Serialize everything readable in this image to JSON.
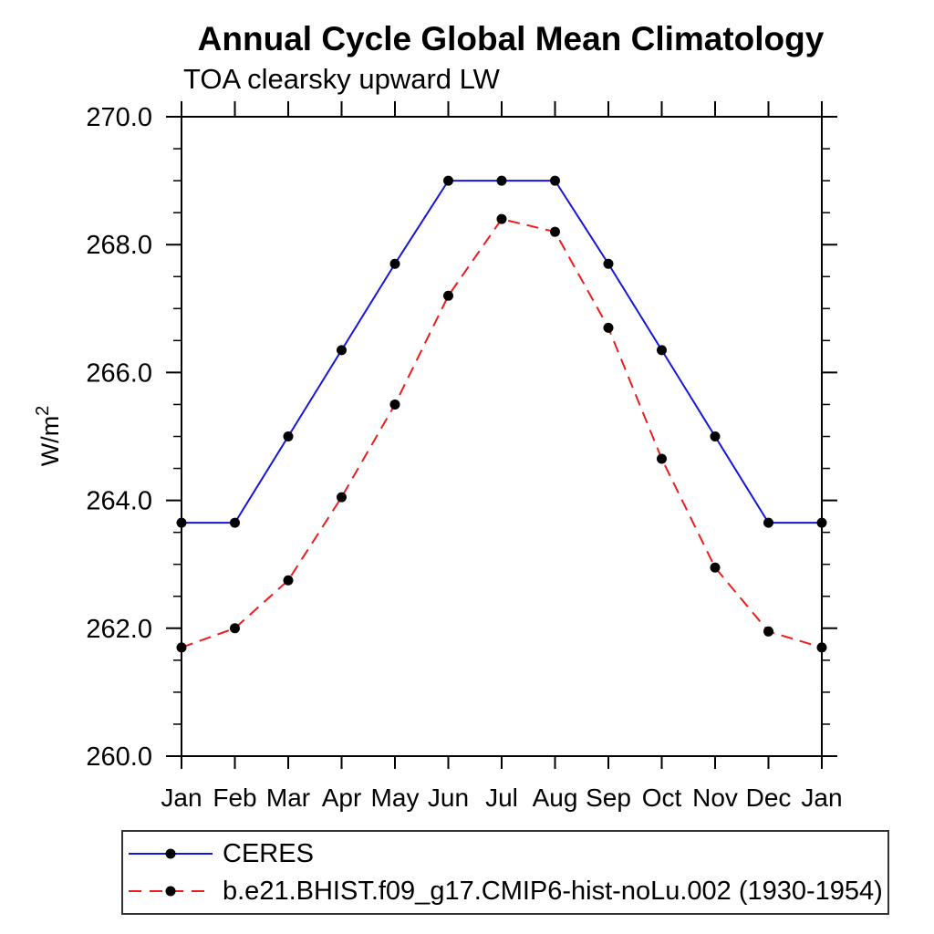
{
  "page": {
    "background": "#ffffff"
  },
  "chart_data": {
    "type": "line",
    "title": "Annual Cycle Global Mean Climatology",
    "subtitle": "TOA clearsky upward LW",
    "ylabel": "W/m²",
    "ylabel_base": "W/m",
    "ylabel_sup": "2",
    "x_categories": [
      "Jan",
      "Feb",
      "Mar",
      "Apr",
      "May",
      "Jun",
      "Jul",
      "Aug",
      "Sep",
      "Oct",
      "Nov",
      "Dec",
      "Jan"
    ],
    "ylim": [
      260.0,
      270.0
    ],
    "y_major_ticks": [
      260.0,
      262.0,
      264.0,
      266.0,
      268.0,
      270.0
    ],
    "y_tick_labels": [
      "260.0",
      "262.0",
      "264.0",
      "266.0",
      "268.0",
      "270.0"
    ],
    "y_minor_step": 0.5,
    "grid": false,
    "legend_position": "bottom-left-box",
    "marker": {
      "shape": "circle",
      "color": "#000000",
      "radius": 5.5
    },
    "series": [
      {
        "name": "CERES",
        "color": "#1515dd",
        "line_style": "solid",
        "values": [
          263.65,
          263.65,
          265.0,
          266.35,
          267.7,
          269.0,
          269.0,
          269.0,
          267.7,
          266.35,
          265.0,
          263.65,
          263.65
        ]
      },
      {
        "name": "b.e21.BHIST.f09_g17.CMIP6-hist-noLu.002 (1930-1954)",
        "color": "#ee1c1c",
        "line_style": "dashed",
        "values": [
          261.7,
          262.0,
          262.75,
          264.05,
          265.5,
          267.2,
          268.4,
          268.2,
          266.7,
          264.65,
          262.95,
          261.95,
          261.7
        ]
      }
    ]
  }
}
